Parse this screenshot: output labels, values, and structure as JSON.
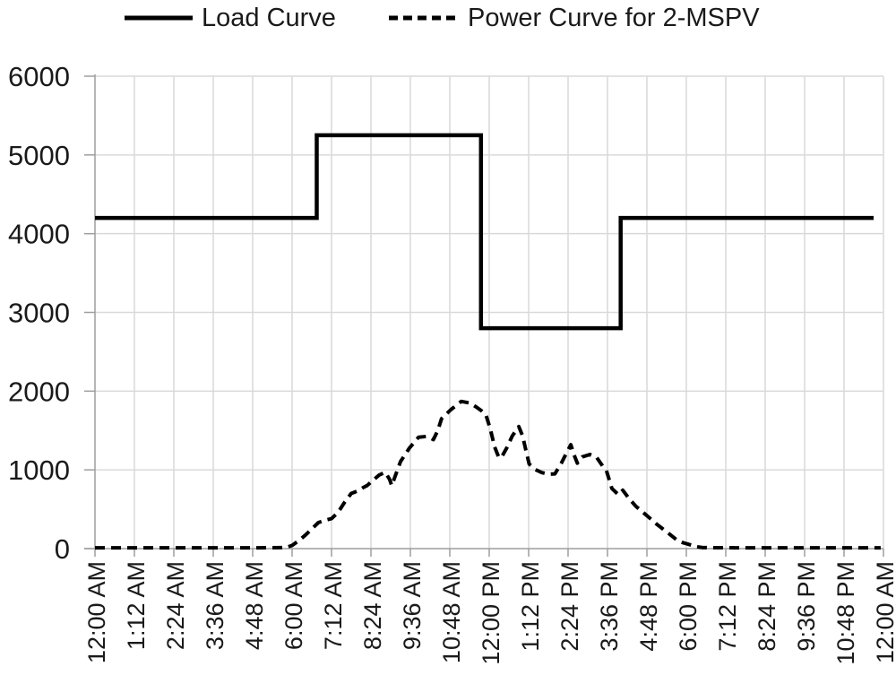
{
  "legend": {
    "items": [
      {
        "label": "Load Curve",
        "line_style": "solid",
        "color": "#000000"
      },
      {
        "label": "Power Curve for 2-MSPV",
        "line_style": "dashed",
        "color": "#000000"
      }
    ]
  },
  "chart_data": {
    "type": "line",
    "title": "",
    "xlabel": "",
    "ylabel": "",
    "grid": true,
    "legend_position": "top",
    "background_color": "#ffffff",
    "colors": {
      "series": "#000000",
      "gridline": "#d9d9d9",
      "axis_line": "#9e9e9e",
      "text": "#1a1a1a"
    },
    "x_axis": {
      "unit": "time of day",
      "range_minutes": [
        0,
        1440
      ],
      "tick_interval_minutes": 72,
      "tick_labels": [
        "12:00 AM",
        "1:12 AM",
        "2:24 AM",
        "3:36 AM",
        "4:48 AM",
        "6:00 AM",
        "7:12 AM",
        "8:24 AM",
        "9:36 AM",
        "10:48 AM",
        "12:00 PM",
        "1:12 PM",
        "2:24 PM",
        "3:36 PM",
        "4:48 PM",
        "6:00 PM",
        "7:12 PM",
        "8:24 PM",
        "9:36 PM",
        "10:48 PM",
        "12:00 AM"
      ]
    },
    "y_axis": {
      "range": [
        0,
        6000
      ],
      "tick_step": 1000,
      "tick_labels": [
        "0",
        "1000",
        "2000",
        "3000",
        "4000",
        "5000",
        "6000"
      ]
    },
    "series": [
      {
        "name": "Load Curve",
        "style": "solid",
        "points_min_value": [
          [
            0,
            4200
          ],
          [
            405,
            4200
          ],
          [
            405,
            5250
          ],
          [
            705,
            5250
          ],
          [
            705,
            2800
          ],
          [
            960,
            2800
          ],
          [
            960,
            4200
          ],
          [
            1422,
            4200
          ]
        ]
      },
      {
        "name": "Power Curve for 2-MSPV",
        "style": "dashed",
        "points_min_value": [
          [
            0,
            10
          ],
          [
            60,
            10
          ],
          [
            120,
            10
          ],
          [
            180,
            10
          ],
          [
            240,
            10
          ],
          [
            300,
            10
          ],
          [
            348,
            12
          ],
          [
            360,
            40
          ],
          [
            372,
            100
          ],
          [
            384,
            170
          ],
          [
            396,
            250
          ],
          [
            408,
            330
          ],
          [
            420,
            360
          ],
          [
            432,
            380
          ],
          [
            444,
            460
          ],
          [
            456,
            590
          ],
          [
            468,
            700
          ],
          [
            481,
            735
          ],
          [
            490,
            775
          ],
          [
            497,
            800
          ],
          [
            504,
            845
          ],
          [
            519,
            935
          ],
          [
            530,
            970
          ],
          [
            538,
            880
          ],
          [
            542,
            800
          ],
          [
            548,
            915
          ],
          [
            558,
            1105
          ],
          [
            574,
            1275
          ],
          [
            591,
            1415
          ],
          [
            607,
            1425
          ],
          [
            618,
            1385
          ],
          [
            626,
            1500
          ],
          [
            633,
            1650
          ],
          [
            650,
            1765
          ],
          [
            669,
            1870
          ],
          [
            684,
            1850
          ],
          [
            696,
            1800
          ],
          [
            706,
            1750
          ],
          [
            714,
            1700
          ],
          [
            722,
            1520
          ],
          [
            730,
            1290
          ],
          [
            738,
            1150
          ],
          [
            744,
            1180
          ],
          [
            752,
            1280
          ],
          [
            762,
            1430
          ],
          [
            774,
            1550
          ],
          [
            781,
            1430
          ],
          [
            787,
            1250
          ],
          [
            793,
            1075
          ],
          [
            804,
            1005
          ],
          [
            816,
            965
          ],
          [
            828,
            945
          ],
          [
            840,
            950
          ],
          [
            852,
            1090
          ],
          [
            860,
            1200
          ],
          [
            869,
            1320
          ],
          [
            875,
            1190
          ],
          [
            881,
            1085
          ],
          [
            890,
            1165
          ],
          [
            904,
            1195
          ],
          [
            916,
            1160
          ],
          [
            928,
            1040
          ],
          [
            934,
            990
          ],
          [
            944,
            764
          ],
          [
            956,
            684
          ],
          [
            964,
            741
          ],
          [
            975,
            640
          ],
          [
            988,
            536
          ],
          [
            1001,
            460
          ],
          [
            1013,
            388
          ],
          [
            1025,
            315
          ],
          [
            1037,
            251
          ],
          [
            1050,
            180
          ],
          [
            1062,
            114
          ],
          [
            1074,
            75
          ],
          [
            1086,
            50
          ],
          [
            1098,
            25
          ],
          [
            1110,
            12
          ],
          [
            1170,
            10
          ],
          [
            1230,
            10
          ],
          [
            1290,
            10
          ],
          [
            1350,
            10
          ],
          [
            1435,
            10
          ]
        ]
      }
    ]
  }
}
